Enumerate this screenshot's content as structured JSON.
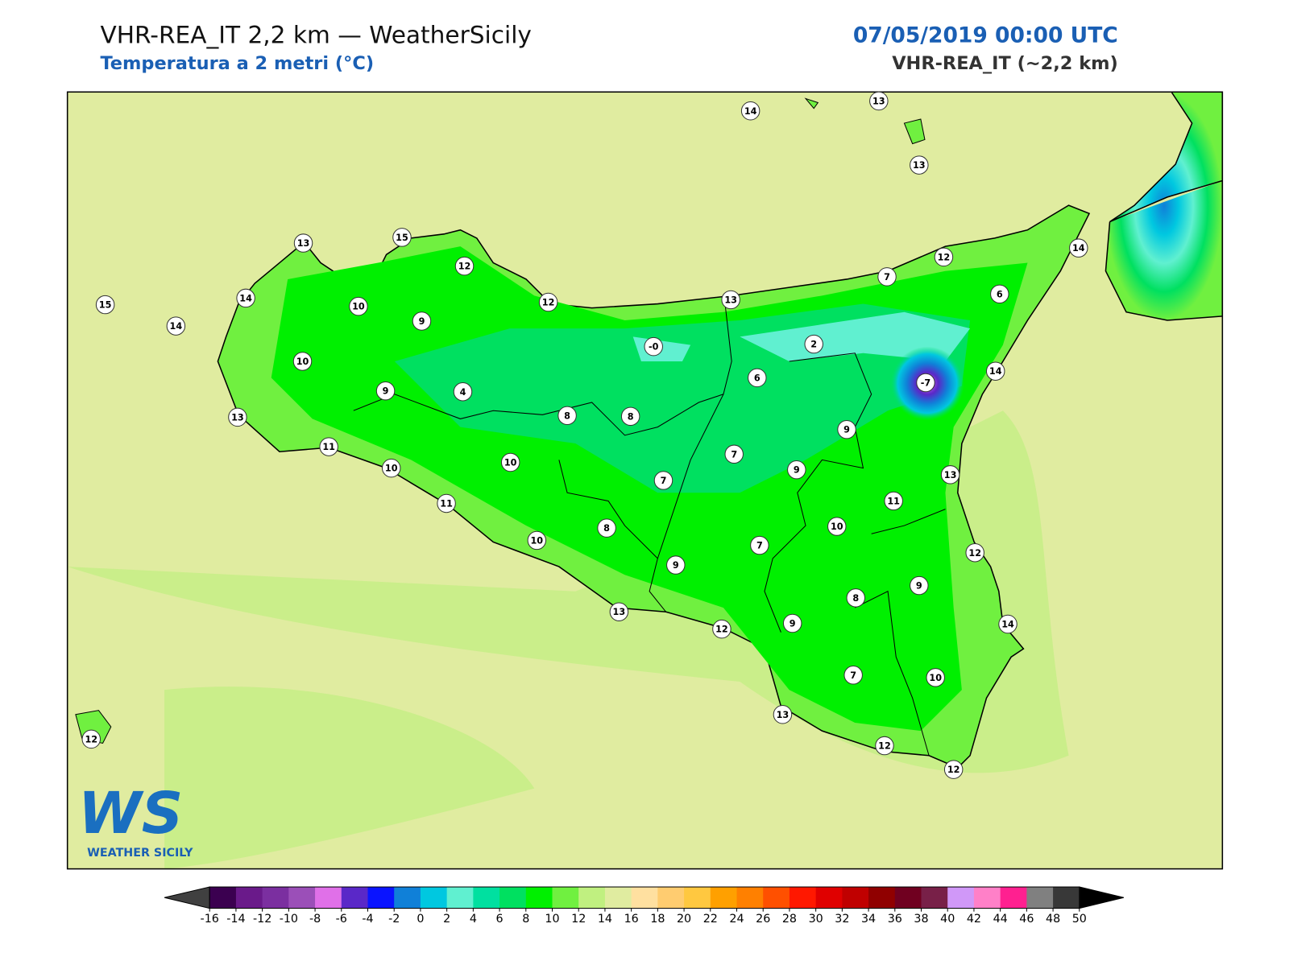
{
  "header": {
    "title": "VHR-REA_IT 2,2 km — WeatherSicily",
    "subtitle": "Temperatura a 2 metri (°C)",
    "valid_time": "07/05/2019 00:00 UTC",
    "model": "VHR-REA_IT (~2,2 km)"
  },
  "stations": [
    "14",
    "13",
    "13",
    "13",
    "15",
    "12",
    "12",
    "14",
    "7",
    "6",
    "15",
    "14",
    "10",
    "12",
    "13",
    "14",
    "9",
    "-0",
    "2",
    "10",
    "6",
    "-7",
    "14",
    "9",
    "4",
    "8",
    "8",
    "13",
    "9",
    "11",
    "7",
    "10",
    "10",
    "9",
    "13",
    "7",
    "11",
    "11",
    "10",
    "8",
    "10",
    "7",
    "12",
    "9",
    "9",
    "8",
    "13",
    "9",
    "12",
    "14",
    "7",
    "10",
    "13",
    "12",
    "12",
    "12"
  ],
  "logo": {
    "mark": "WS",
    "text": "WEATHER SICILY"
  },
  "colorbar": {
    "ticks": [
      -16,
      -14,
      -12,
      -10,
      -8,
      -6,
      -4,
      -2,
      0,
      2,
      4,
      6,
      8,
      10,
      12,
      14,
      16,
      18,
      20,
      22,
      24,
      26,
      28,
      30,
      32,
      34,
      36,
      38,
      40,
      42,
      44,
      46,
      48,
      50
    ],
    "colors": [
      "#3b0050",
      "#6a1a8a",
      "#7b2fa0",
      "#9b4fb8",
      "#e070e8",
      "#5a28c8",
      "#0a14ff",
      "#1080d8",
      "#00c8e0",
      "#60f0d0",
      "#00e0a0",
      "#00e060",
      "#00f000",
      "#70f040",
      "#c0f080",
      "#e0eca0",
      "#ffe0a0",
      "#ffcc70",
      "#ffc840",
      "#ffa000",
      "#ff8000",
      "#ff5000",
      "#ff1800",
      "#e00000",
      "#c00000",
      "#900000",
      "#700020",
      "#782048",
      "#d098f8",
      "#ff80c8",
      "#ff2090",
      "#808080",
      "#383838"
    ],
    "under_color": "#404040",
    "over_color": "#000000"
  }
}
